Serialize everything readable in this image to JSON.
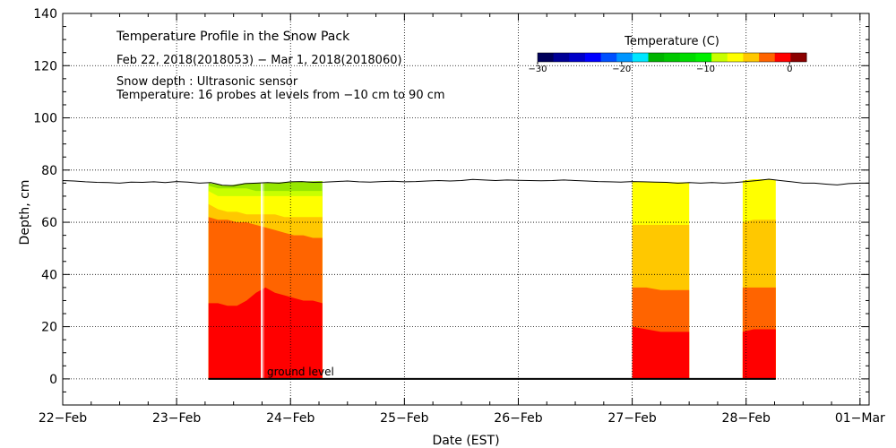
{
  "chart_data": {
    "type": "heatmap",
    "title": "Temperature Profile in the Snow Pack",
    "subtitle": "Feb 22, 2018(2018053) − Mar  1, 2018(2018060)",
    "info_lines": [
      "Snow depth : Ultrasonic sensor",
      "Temperature: 16 probes at levels from −10 cm to 90 cm"
    ],
    "xlabel": "Date (EST)",
    "ylabel": "Depth, cm",
    "xlim": [
      0,
      7.08
    ],
    "ylim": [
      -10,
      140
    ],
    "x_tick_labels": [
      "22−Feb",
      "23−Feb",
      "24−Feb",
      "25−Feb",
      "26−Feb",
      "27−Feb",
      "28−Feb",
      "01−Mar"
    ],
    "y_ticks": [
      0,
      20,
      40,
      60,
      80,
      100,
      120,
      140
    ],
    "grid": true,
    "ground_level_label": "ground level",
    "colorbar": {
      "title": "Temperature (C)",
      "tick_labels": [
        "−30",
        "−20",
        "−10",
        "0"
      ],
      "tick_values": [
        -30,
        -20,
        -10,
        0
      ],
      "range": [
        -30,
        2
      ],
      "colors": [
        "#00005a",
        "#000096",
        "#0000c8",
        "#0000ff",
        "#0050ff",
        "#0096ff",
        "#00e6ff",
        "#00b400",
        "#00c800",
        "#00dc00",
        "#00f000",
        "#c8ff00",
        "#ffff00",
        "#ffc800",
        "#ff6400",
        "#ff0000",
        "#8b0000"
      ]
    },
    "snow_depth": {
      "x": [
        0,
        0.1,
        0.2,
        0.3,
        0.4,
        0.5,
        0.6,
        0.7,
        0.8,
        0.9,
        1.0,
        1.1,
        1.2,
        1.3,
        1.4,
        1.5,
        1.6,
        1.7,
        1.8,
        1.9,
        2.0,
        2.1,
        2.2,
        2.3,
        2.4,
        2.5,
        2.6,
        2.7,
        2.8,
        2.9,
        3.0,
        3.1,
        3.2,
        3.3,
        3.4,
        3.5,
        3.6,
        3.7,
        3.8,
        3.9,
        4.0,
        4.1,
        4.2,
        4.3,
        4.4,
        4.5,
        4.6,
        4.7,
        4.8,
        4.9,
        5.0,
        5.1,
        5.2,
        5.3,
        5.4,
        5.5,
        5.6,
        5.7,
        5.8,
        5.9,
        6.0,
        6.1,
        6.2,
        6.3,
        6.4,
        6.5,
        6.6,
        6.7,
        6.8,
        6.9,
        7.0,
        7.08
      ],
      "y": [
        76,
        75.8,
        75.5,
        75.3,
        75.2,
        75.0,
        75.4,
        75.3,
        75.5,
        75.2,
        75.6,
        75.4,
        75.0,
        75.2,
        74.2,
        74.0,
        74.8,
        75.0,
        75.2,
        75.0,
        75.5,
        75.6,
        75.3,
        75.4,
        75.6,
        75.8,
        75.5,
        75.4,
        75.6,
        75.7,
        75.5,
        75.6,
        75.8,
        76.0,
        75.8,
        76.0,
        76.4,
        76.2,
        76.0,
        76.2,
        76.1,
        76.0,
        75.9,
        76.0,
        76.2,
        76.0,
        75.8,
        75.6,
        75.5,
        75.4,
        75.6,
        75.5,
        75.4,
        75.3,
        75.0,
        75.2,
        75.0,
        75.2,
        75.0,
        75.2,
        75.6,
        76.0,
        76.5,
        76.0,
        75.5,
        75.0,
        75.0,
        74.6,
        74.3,
        74.8,
        75.0,
        75.0
      ]
    },
    "temperature_blocks": [
      {
        "x_start": 1.28,
        "x_end": 2.28,
        "bands": [
          {
            "color": "#ff0000",
            "top": [
              29,
              29,
              28,
              28,
              30,
              33,
              35,
              33,
              32,
              31,
              30,
              30,
              29
            ]
          },
          {
            "color": "#ff6400",
            "top": [
              62,
              61,
              61,
              60,
              60,
              59,
              58,
              57,
              56,
              55,
              55,
              54,
              54
            ]
          },
          {
            "color": "#ffc800",
            "top": [
              67,
              65,
              64,
              64,
              63,
              63,
              63,
              63,
              62,
              62,
              62,
              62,
              62
            ]
          },
          {
            "color": "#ffff00",
            "top": [
              72,
              70,
              70,
              70,
              70,
              70,
              70,
              70,
              70,
              70,
              70,
              70,
              70
            ]
          },
          {
            "color": "#c8ff00",
            "top": [
              74,
              73,
              73,
              73,
              73,
              72,
              72,
              72,
              72,
              72,
              72,
              72,
              72
            ]
          },
          {
            "color": "#96e600",
            "top": [
              75,
              74.5,
              74,
              74.5,
              75,
              75,
              75,
              75.2,
              75.4,
              75.5,
              75.6,
              75.7,
              75.8
            ]
          }
        ],
        "gap_x": 1.74
      },
      {
        "x_start": 5.0,
        "x_end": 5.5,
        "bands": [
          {
            "color": "#ff0000",
            "top": [
              20,
              19,
              18,
              18,
              18
            ]
          },
          {
            "color": "#ff6400",
            "top": [
              35,
              35,
              34,
              34,
              34
            ]
          },
          {
            "color": "#ffc800",
            "top": [
              59,
              59,
              59,
              59,
              59
            ]
          },
          {
            "color": "#ffff00",
            "top": [
              75.5,
              75.5,
              75.4,
              75.3,
              75.3
            ]
          }
        ],
        "gap_x": null
      },
      {
        "x_start": 5.97,
        "x_end": 6.26,
        "bands": [
          {
            "color": "#ff0000",
            "top": [
              18,
              19,
              19,
              19
            ]
          },
          {
            "color": "#ff6400",
            "top": [
              35,
              35,
              35,
              35
            ]
          },
          {
            "color": "#ffc800",
            "top": [
              60,
              61,
              61,
              61
            ]
          },
          {
            "color": "#ffff00",
            "top": [
              76,
              76.5,
              76.5,
              76.2
            ]
          }
        ],
        "gap_x": null
      }
    ],
    "ground_x_range": [
      1.28,
      6.26
    ]
  }
}
